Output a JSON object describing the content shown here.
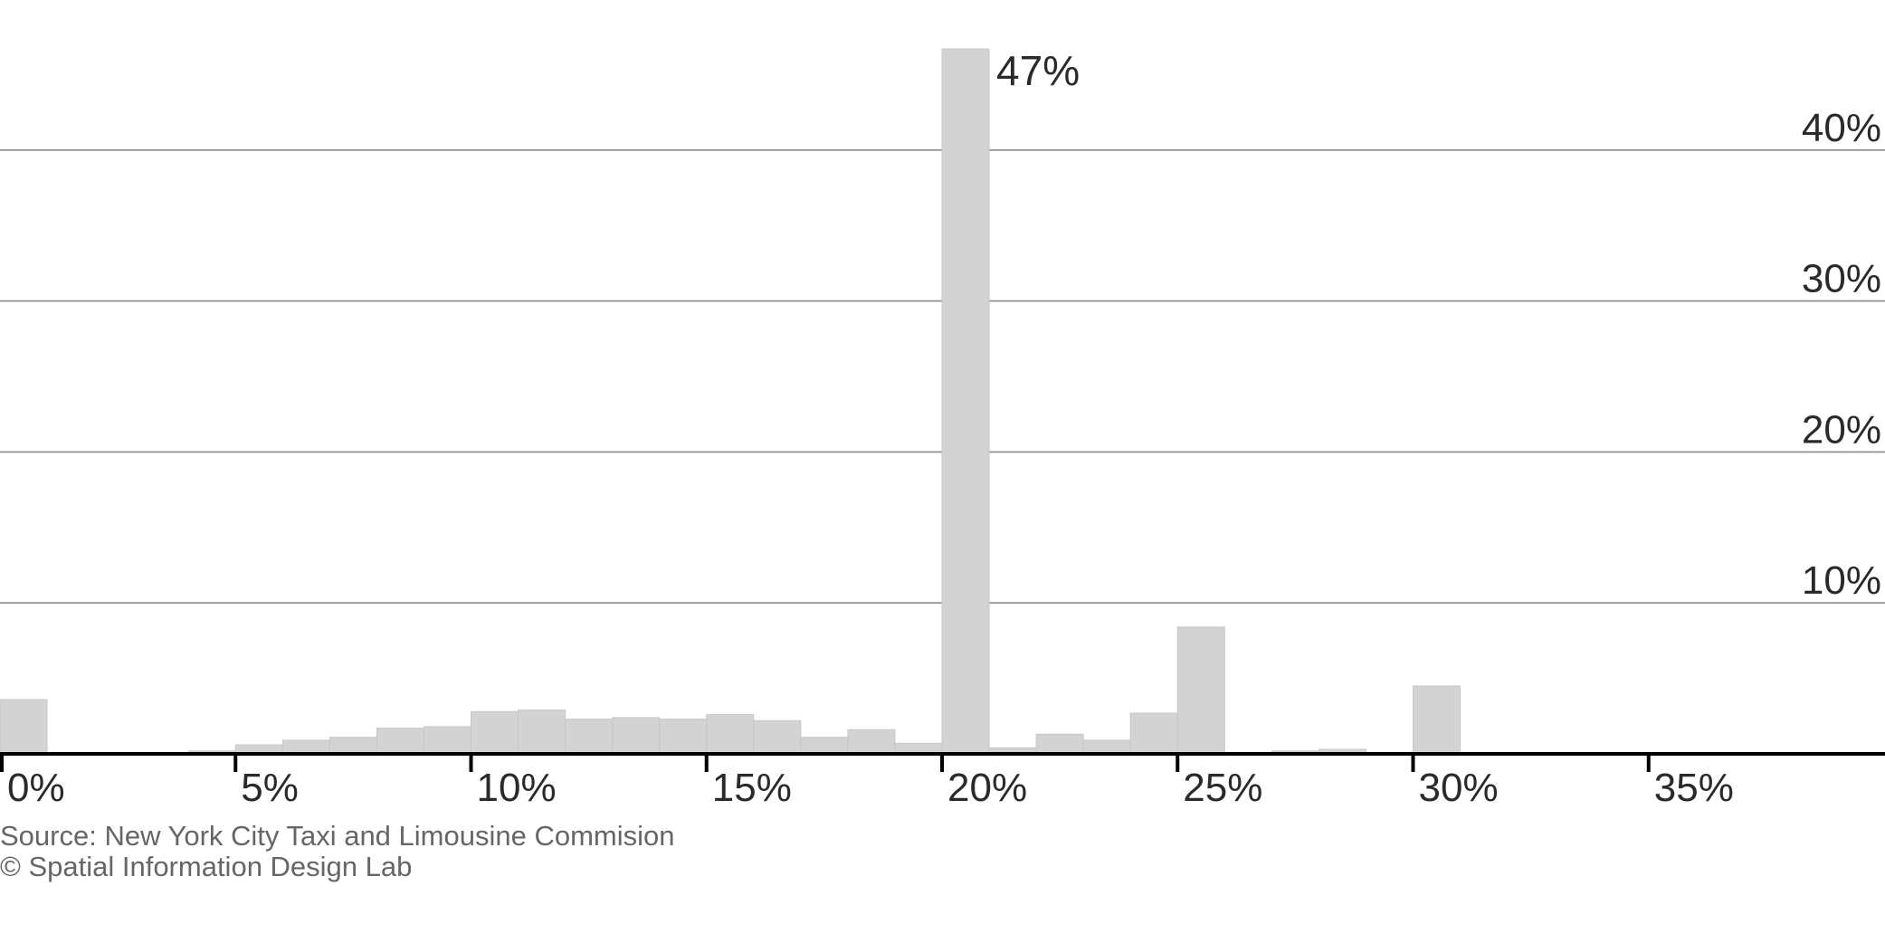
{
  "chart_data": {
    "type": "bar",
    "title": "",
    "xlabel": "",
    "ylabel": "",
    "bin_width": 1,
    "x": [
      0,
      1,
      2,
      3,
      4,
      5,
      6,
      7,
      8,
      9,
      10,
      11,
      12,
      13,
      14,
      15,
      16,
      17,
      18,
      19,
      20,
      21,
      22,
      23,
      24,
      25,
      26,
      27,
      28,
      29,
      30,
      31,
      32,
      33
    ],
    "values": [
      3.6,
      0,
      0,
      0,
      0.2,
      0.6,
      0.9,
      1.1,
      1.7,
      1.8,
      2.8,
      2.9,
      2.3,
      2.4,
      2.3,
      2.6,
      2.2,
      1.1,
      1.6,
      0.7,
      46.7,
      0.4,
      1.3,
      0.9,
      2.7,
      8.4,
      0.1,
      0.2,
      0.3,
      0.1,
      4.5,
      0,
      0,
      0.1
    ],
    "xlim": [
      0,
      40
    ],
    "ylim": [
      0,
      50
    ],
    "x_ticks": [
      0,
      5,
      10,
      15,
      20,
      25,
      30,
      35
    ],
    "x_tick_labels": [
      "0%",
      "5%",
      "10%",
      "15%",
      "20%",
      "25%",
      "30%",
      "35%"
    ],
    "y_ticks": [
      10,
      20,
      30,
      40
    ],
    "y_tick_labels": [
      "10%",
      "20%",
      "30%",
      "40%"
    ],
    "grid": true,
    "annotations": [
      {
        "x": 20,
        "y": 46.7,
        "text": "47%"
      }
    ]
  },
  "footer": {
    "source": "Source: New York City Taxi and Limousine Commision",
    "credit": "© Spatial Information Design Lab"
  }
}
